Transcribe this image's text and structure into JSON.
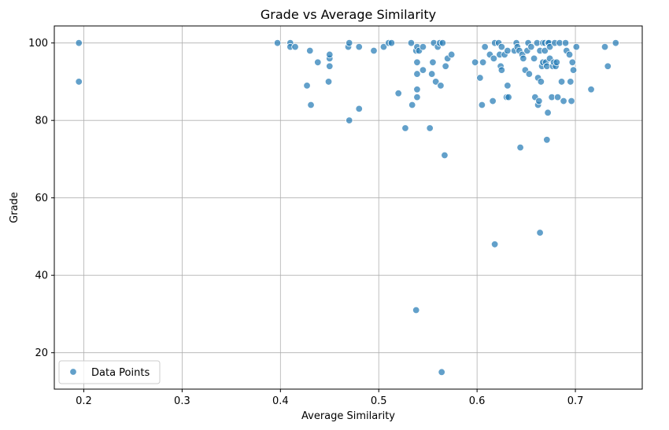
{
  "chart_data": {
    "type": "scatter",
    "title": "Grade vs Average Similarity",
    "xlabel": "Average Similarity",
    "ylabel": "Grade",
    "xlim": [
      0.17,
      0.768
    ],
    "ylim": [
      10.6,
      104.4
    ],
    "xticks": [
      "0.2",
      "0.3",
      "0.4",
      "0.5",
      "0.6",
      "0.7"
    ],
    "yticks": [
      "20",
      "40",
      "60",
      "80",
      "100"
    ],
    "grid": true,
    "legend_position": "lower-left",
    "series": [
      {
        "name": "Data Points",
        "color": "#1f77b4",
        "points": [
          [
            0.195,
            100
          ],
          [
            0.195,
            90
          ],
          [
            0.397,
            100
          ],
          [
            0.41,
            100
          ],
          [
            0.41,
            99
          ],
          [
            0.415,
            99
          ],
          [
            0.427,
            89
          ],
          [
            0.43,
            98
          ],
          [
            0.431,
            84
          ],
          [
            0.438,
            95
          ],
          [
            0.449,
            90
          ],
          [
            0.45,
            96
          ],
          [
            0.45,
            97
          ],
          [
            0.45,
            94
          ],
          [
            0.469,
            99
          ],
          [
            0.47,
            100
          ],
          [
            0.47,
            80
          ],
          [
            0.48,
            99
          ],
          [
            0.48,
            83
          ],
          [
            0.495,
            98
          ],
          [
            0.505,
            99
          ],
          [
            0.51,
            100
          ],
          [
            0.513,
            100
          ],
          [
            0.52,
            87
          ],
          [
            0.527,
            78
          ],
          [
            0.533,
            100
          ],
          [
            0.534,
            84
          ],
          [
            0.538,
            98
          ],
          [
            0.539,
            99
          ],
          [
            0.539,
            95
          ],
          [
            0.539,
            92
          ],
          [
            0.539,
            88
          ],
          [
            0.539,
            86
          ],
          [
            0.538,
            31
          ],
          [
            0.541,
            98
          ],
          [
            0.545,
            99
          ],
          [
            0.545,
            93
          ],
          [
            0.552,
            78
          ],
          [
            0.554,
            92
          ],
          [
            0.555,
            95
          ],
          [
            0.556,
            100
          ],
          [
            0.558,
            90
          ],
          [
            0.56,
            99
          ],
          [
            0.562,
            100
          ],
          [
            0.563,
            89
          ],
          [
            0.565,
            100
          ],
          [
            0.564,
            15
          ],
          [
            0.567,
            71
          ],
          [
            0.568,
            94
          ],
          [
            0.57,
            96
          ],
          [
            0.574,
            97
          ],
          [
            0.598,
            95
          ],
          [
            0.603,
            91
          ],
          [
            0.605,
            84
          ],
          [
            0.606,
            95
          ],
          [
            0.608,
            99
          ],
          [
            0.613,
            97
          ],
          [
            0.616,
            85
          ],
          [
            0.617,
            96
          ],
          [
            0.618,
            100
          ],
          [
            0.618,
            48
          ],
          [
            0.622,
            100
          ],
          [
            0.623,
            97
          ],
          [
            0.624,
            94
          ],
          [
            0.625,
            99
          ],
          [
            0.625,
            93
          ],
          [
            0.628,
            97
          ],
          [
            0.63,
            86
          ],
          [
            0.631,
            98
          ],
          [
            0.631,
            89
          ],
          [
            0.632,
            86
          ],
          [
            0.638,
            98
          ],
          [
            0.64,
            100
          ],
          [
            0.641,
            99
          ],
          [
            0.643,
            98
          ],
          [
            0.644,
            73
          ],
          [
            0.646,
            97
          ],
          [
            0.647,
            96
          ],
          [
            0.649,
            93
          ],
          [
            0.651,
            98
          ],
          [
            0.652,
            100
          ],
          [
            0.653,
            92
          ],
          [
            0.655,
            99
          ],
          [
            0.658,
            96
          ],
          [
            0.659,
            86
          ],
          [
            0.661,
            100
          ],
          [
            0.662,
            91
          ],
          [
            0.662,
            84
          ],
          [
            0.663,
            85
          ],
          [
            0.664,
            98
          ],
          [
            0.664,
            51
          ],
          [
            0.665,
            90
          ],
          [
            0.666,
            94
          ],
          [
            0.667,
            95
          ],
          [
            0.667,
            100
          ],
          [
            0.669,
            100
          ],
          [
            0.669,
            98
          ],
          [
            0.67,
            95
          ],
          [
            0.671,
            94
          ],
          [
            0.671,
            75
          ],
          [
            0.672,
            100
          ],
          [
            0.672,
            82
          ],
          [
            0.673,
            100
          ],
          [
            0.674,
            99
          ],
          [
            0.674,
            96
          ],
          [
            0.676,
            86
          ],
          [
            0.677,
            94
          ],
          [
            0.678,
            95
          ],
          [
            0.679,
            100
          ],
          [
            0.68,
            94
          ],
          [
            0.681,
            95
          ],
          [
            0.682,
            86
          ],
          [
            0.684,
            100
          ],
          [
            0.686,
            90
          ],
          [
            0.688,
            85
          ],
          [
            0.69,
            100
          ],
          [
            0.691,
            98
          ],
          [
            0.694,
            97
          ],
          [
            0.695,
            90
          ],
          [
            0.696,
            85
          ],
          [
            0.697,
            95
          ],
          [
            0.698,
            93
          ],
          [
            0.701,
            99
          ],
          [
            0.716,
            88
          ],
          [
            0.73,
            99
          ],
          [
            0.733,
            94
          ],
          [
            0.741,
            100
          ]
        ]
      }
    ]
  }
}
